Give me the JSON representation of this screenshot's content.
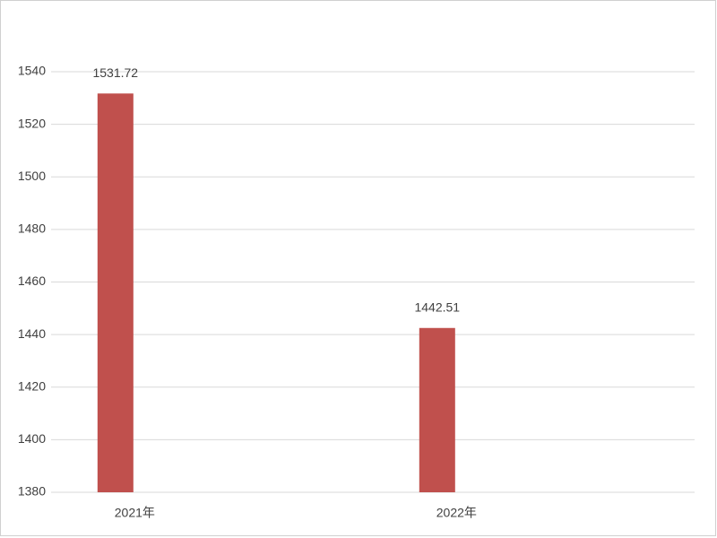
{
  "chart_data": {
    "type": "bar",
    "categories": [
      "2021年",
      "2022年"
    ],
    "values": [
      1531.72,
      1442.51
    ],
    "color": "#c0504d",
    "ylim": [
      1380,
      1540
    ],
    "yticks": [
      1380,
      1400,
      1420,
      1440,
      1460,
      1480,
      1500,
      1520,
      1540
    ],
    "grid": true
  }
}
